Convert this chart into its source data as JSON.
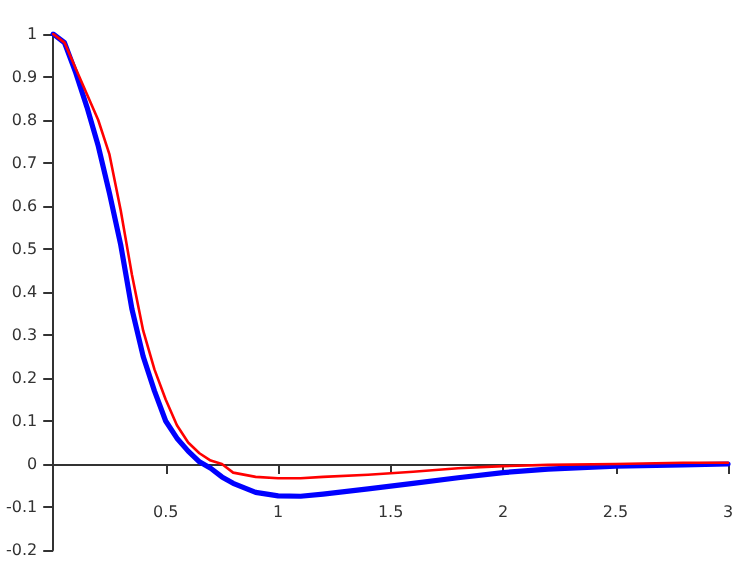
{
  "chart_data": {
    "type": "line",
    "x": [
      0,
      0.05,
      0.1,
      0.15,
      0.2,
      0.25,
      0.3,
      0.35,
      0.4,
      0.45,
      0.5,
      0.55,
      0.6,
      0.65,
      0.7,
      0.75,
      0.8,
      0.9,
      1.0,
      1.1,
      1.2,
      1.4,
      1.6,
      1.8,
      2.0,
      2.2,
      2.5,
      2.8,
      3.0
    ],
    "series": [
      {
        "color": "#0000ff",
        "values": [
          1,
          0.98,
          0.91,
          0.83,
          0.74,
          0.63,
          0.51,
          0.36,
          0.25,
          0.17,
          0.1,
          0.06,
          0.03,
          0.005,
          -0.01,
          -0.03,
          -0.045,
          -0.066,
          -0.074,
          -0.075,
          -0.07,
          -0.058,
          -0.045,
          -0.032,
          -0.02,
          -0.012,
          -0.005,
          -0.002,
          0
        ]
      },
      {
        "color": "#ff0000",
        "values": [
          1,
          0.98,
          0.92,
          0.86,
          0.8,
          0.72,
          0.59,
          0.44,
          0.31,
          0.22,
          0.15,
          0.09,
          0.05,
          0.025,
          0.008,
          0,
          -0.02,
          -0.03,
          -0.033,
          -0.033,
          -0.03,
          -0.025,
          -0.018,
          -0.01,
          -0.005,
          -0.002,
          0,
          0.003,
          0.003
        ]
      }
    ],
    "xlim": [
      0,
      3
    ],
    "xticks": [
      0.5,
      1,
      1.5,
      2,
      2.5,
      3
    ],
    "ylim": [
      -0.2,
      1
    ],
    "yticks": [
      -0.2,
      -0.1,
      0,
      0.1,
      0.2,
      0.3,
      0.4,
      0.5,
      0.6,
      0.7,
      0.8,
      0.9,
      1
    ],
    "grid": false,
    "marker": "none",
    "line_style": "solid"
  }
}
